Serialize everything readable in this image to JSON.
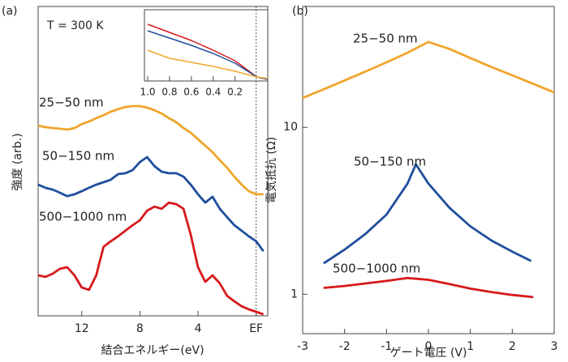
{
  "chart_data": [
    {
      "type": "line",
      "panel_label": "(a)",
      "annotation": "T = 300 K",
      "xlabel": "結合エネルギー(eV)",
      "ylabel": "強度 (arb.)",
      "x": [
        15,
        14.5,
        14,
        13.5,
        13,
        12.5,
        12,
        11.5,
        11,
        10.5,
        10,
        9.5,
        9,
        8.5,
        8,
        7.5,
        7,
        6.5,
        6,
        5.5,
        5,
        4.5,
        4,
        3.5,
        3,
        2.5,
        2,
        1.5,
        1,
        0.5,
        0,
        -0.5
      ],
      "xlim": [
        15,
        -0.8
      ],
      "ylim": [
        0,
        10
      ],
      "xticks": [
        12,
        8,
        4,
        {
          "value": 0,
          "label": "EF"
        }
      ],
      "series": [
        {
          "name": "25−50 nm",
          "color": "#f0a52c",
          "values": [
            6.15,
            6.1,
            6.07,
            6.05,
            6.02,
            6.07,
            6.2,
            6.28,
            6.39,
            6.49,
            6.6,
            6.68,
            6.75,
            6.78,
            6.78,
            6.73,
            6.65,
            6.54,
            6.39,
            6.26,
            6.07,
            5.92,
            5.71,
            5.5,
            5.29,
            5.03,
            4.79,
            4.5,
            4.24,
            4.03,
            3.93,
            3.93
          ]
        },
        {
          "name": "50−150 nm",
          "color": "#1f4e9c",
          "values": [
            4.24,
            4.14,
            4.08,
            3.98,
            3.87,
            3.93,
            4.03,
            4.14,
            4.24,
            4.32,
            4.4,
            4.58,
            4.61,
            4.71,
            4.97,
            5.13,
            4.84,
            4.66,
            4.61,
            4.61,
            4.5,
            4.24,
            3.93,
            3.66,
            3.85,
            3.46,
            3.19,
            2.93,
            2.75,
            2.57,
            2.41,
            2.09
          ]
        },
        {
          "name": "500−1000 nm",
          "color": "#d7191c",
          "values": [
            1.31,
            1.26,
            1.36,
            1.52,
            1.57,
            1.31,
            0.92,
            0.84,
            1.31,
            2.23,
            2.41,
            2.57,
            2.75,
            2.93,
            3.09,
            3.4,
            3.53,
            3.46,
            3.66,
            3.61,
            3.46,
            2.62,
            1.57,
            1.1,
            1.31,
            1.05,
            0.65,
            0.47,
            0.31,
            0.21,
            0.13,
            0.05
          ]
        }
      ]
    },
    {
      "type": "line",
      "x": [
        1,
        0.8,
        0.6,
        0.4,
        0.2,
        0,
        -0.1
      ],
      "xlim": [
        1.03,
        -0.1
      ],
      "ylim": [
        0,
        10
      ],
      "xticks": [
        {
          "value": 1,
          "label": "1.0"
        },
        0.8,
        0.6,
        0.4,
        0.2
      ],
      "series": [
        {
          "color": "#d7191c",
          "values": [
            7.95,
            6.82,
            5.68,
            4.32,
            2.84,
            0.57,
            0.23
          ]
        },
        {
          "color": "#1f4e9c",
          "values": [
            7.05,
            6.02,
            5.0,
            3.86,
            2.5,
            0.57,
            0.23
          ]
        },
        {
          "color": "#f0a52c",
          "values": [
            4.32,
            3.18,
            2.61,
            2.05,
            1.36,
            0.57,
            0.34
          ]
        }
      ]
    },
    {
      "type": "line",
      "panel_label": "(b)",
      "xlabel": "ゲート電圧 (V)",
      "ylabel": "電気抵抗 (Ω)",
      "log_y": true,
      "xlim": [
        -3,
        3
      ],
      "ylim": [
        0.58,
        53
      ],
      "xticks": [
        -3,
        -2,
        -1,
        0,
        1,
        2,
        3
      ],
      "yticks": [
        1,
        10
      ],
      "series": [
        {
          "name": "25−50 nm",
          "color": "#f0a52c",
          "x": [
            -3,
            -2.5,
            -2,
            -1.5,
            -1,
            -0.5,
            0,
            0.5,
            1,
            1.5,
            2,
            2.5,
            3
          ],
          "values": [
            15,
            16.9,
            19.1,
            21.6,
            24.5,
            28,
            32.5,
            29.5,
            26,
            23,
            20.5,
            18.2,
            16.2
          ]
        },
        {
          "name": "50−150 nm",
          "color": "#1f4e9c",
          "x": [
            -2.5,
            -2,
            -1.5,
            -1,
            -0.5,
            -0.3,
            0,
            0.5,
            1,
            1.5,
            2,
            2.45
          ],
          "values": [
            1.53,
            1.85,
            2.3,
            3.0,
            4.6,
            6.0,
            4.6,
            3.3,
            2.55,
            2.1,
            1.8,
            1.58
          ]
        },
        {
          "name": "500−1000 nm",
          "color": "#d7191c",
          "x": [
            -2.5,
            -2,
            -1.5,
            -1,
            -0.5,
            0,
            0.5,
            1,
            1.5,
            2,
            2.5
          ],
          "values": [
            1.09,
            1.12,
            1.16,
            1.2,
            1.25,
            1.22,
            1.15,
            1.08,
            1.03,
            0.99,
            0.96
          ]
        }
      ]
    }
  ]
}
